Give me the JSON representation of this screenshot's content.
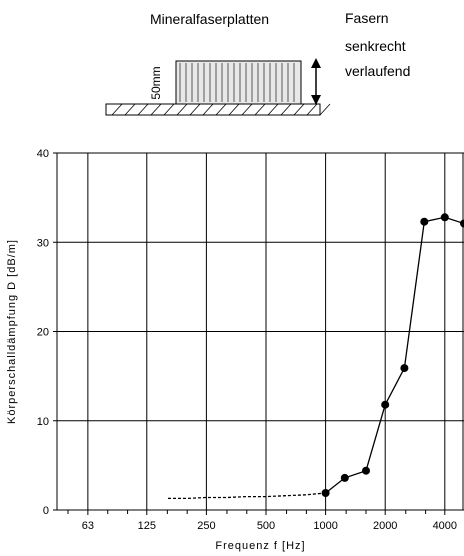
{
  "illustration": {
    "material_label": "Mineralfaserplatten",
    "note_lines": [
      "Fasern",
      "senkrecht",
      "verlaufend"
    ],
    "thickness_label": "50mm"
  },
  "chart_data": {
    "type": "line",
    "title": "",
    "xlabel": "Frequenz f [Hz]",
    "ylabel": "Körperschalldämpfung D [dB/m]",
    "x_scale": "log2",
    "xlim": [
      44,
      5000
    ],
    "ylim": [
      0,
      40
    ],
    "x_ticks": [
      63,
      125,
      250,
      500,
      1000,
      2000,
      4000
    ],
    "x_tick_labels": [
      "63",
      "125",
      "250",
      "500",
      "1000",
      "2000",
      "4000"
    ],
    "y_ticks": [
      0,
      10,
      20,
      30,
      40
    ],
    "y_tick_labels": [
      "0",
      "10",
      "20",
      "30",
      "40"
    ],
    "grid": true,
    "series": [
      {
        "style": "dotted",
        "x": [
          160,
          200,
          250,
          315,
          400,
          500,
          630,
          800,
          1000
        ],
        "y": [
          1.3,
          1.3,
          1.4,
          1.4,
          1.5,
          1.5,
          1.6,
          1.7,
          1.9
        ]
      },
      {
        "style": "solid-markers",
        "x": [
          1000,
          1250,
          1600,
          2000,
          2500,
          3150,
          4000,
          5000
        ],
        "y": [
          1.9,
          3.6,
          4.4,
          11.8,
          15.9,
          32.3,
          32.8,
          32.1
        ]
      }
    ]
  }
}
